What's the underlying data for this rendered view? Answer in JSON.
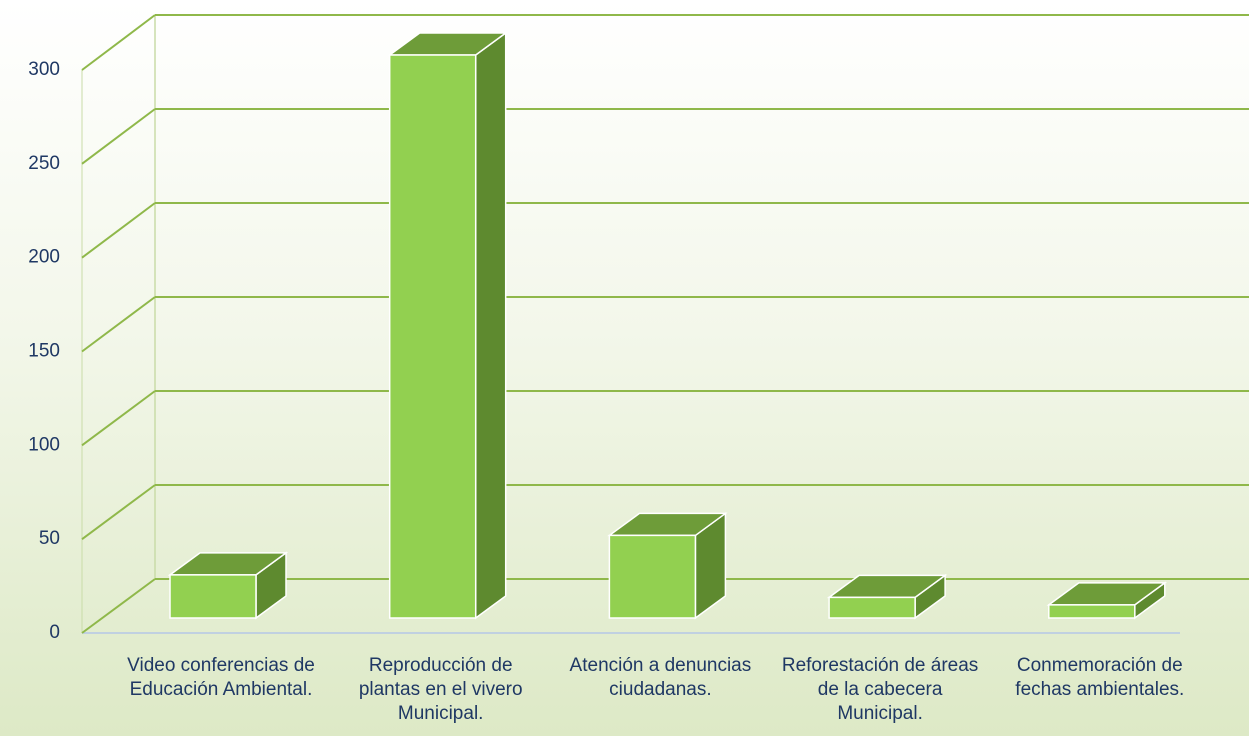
{
  "chart_data": {
    "type": "bar3d",
    "categories": [
      "Video conferencias de Educación Ambiental.",
      "Reproducción de plantas en el vivero Municipal.",
      "Atención a denuncias ciudadanas.",
      "Reforestación de áreas de la cabecera Municipal.",
      "Conmemoración de fechas ambientales."
    ],
    "values": [
      23,
      300,
      44,
      11,
      7
    ],
    "color": "#92d050",
    "ylim": [
      0,
      300
    ],
    "yticks": [
      0,
      50,
      100,
      150,
      200,
      250,
      300
    ],
    "grid": true
  }
}
